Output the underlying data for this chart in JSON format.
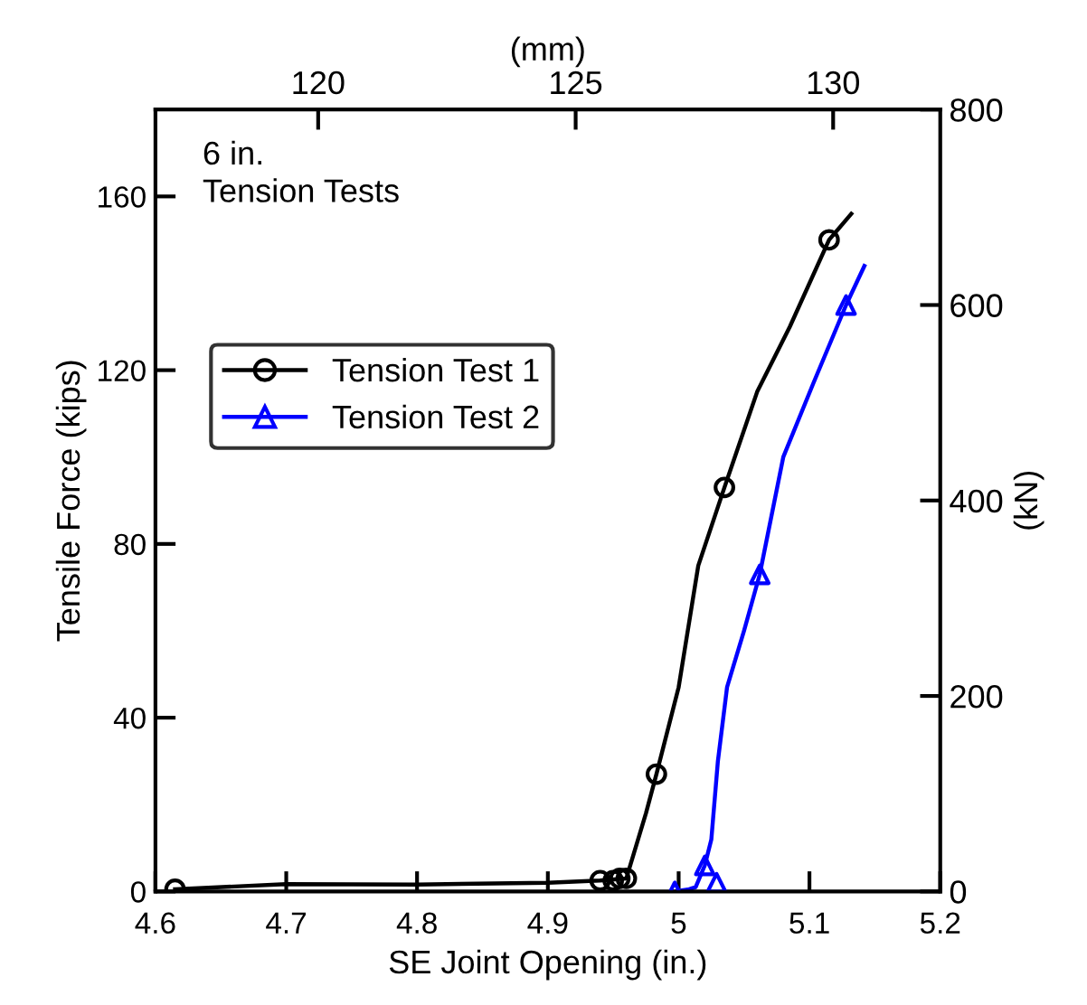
{
  "chart_data": {
    "type": "line",
    "xlabel": "SE Joint Opening (in.)",
    "ylabel": "Tensile Force (kips)",
    "y2label": "(kN)",
    "x2label": "(mm)",
    "annotations": [
      "6 in.\nTension Tests"
    ],
    "xlim": [
      4.6,
      5.2
    ],
    "xticks": [
      4.6,
      4.7,
      4.8,
      4.9,
      5,
      5.1,
      5.2
    ],
    "ylim": [
      0,
      180
    ],
    "yticks": [
      0,
      40,
      80,
      120,
      160
    ],
    "y2lim": [
      0,
      800
    ],
    "y2ticks": [
      0,
      200,
      400,
      600,
      800
    ],
    "x2lim": [
      116.84,
      132.08
    ],
    "x2ticks": [
      120,
      125,
      130
    ],
    "grid": false,
    "legend": "top left",
    "line_style": "solid",
    "series": [
      {
        "name": "Tension Test 1",
        "marker": "none",
        "color": "#000000",
        "x": [
          4.615,
          4.7,
          4.8,
          4.9,
          4.94,
          4.96,
          4.965,
          4.975,
          4.983,
          5.0,
          5.015,
          5.035,
          5.06,
          5.085,
          5.115,
          5.132
        ],
        "values": [
          0.5,
          1.7,
          1.6,
          2.0,
          2.5,
          3,
          8,
          18,
          27,
          47,
          75,
          93,
          115,
          130,
          150,
          156
        ]
      },
      {
        "type": "scatter",
        "marker": "circle",
        "color": "#000000",
        "x": [
          4.615,
          4.94,
          4.95,
          4.955,
          4.96,
          4.983,
          5.035,
          5.115
        ],
        "values": [
          0.5,
          2.5,
          2.5,
          3,
          3,
          27,
          93,
          150
        ]
      },
      {
        "name": "Tension Test 2",
        "marker": "none",
        "color": "#0000ff",
        "x": [
          4.997,
          5.008,
          5.013,
          5.02,
          5.025,
          5.03,
          5.037,
          5.05,
          5.062,
          5.08,
          5.103,
          5.128,
          5.142
        ],
        "values": [
          0,
          0.5,
          1,
          6,
          12,
          30,
          47,
          60,
          73,
          100,
          117,
          135,
          144
        ]
      },
      {
        "type": "scatter",
        "marker": "triangle",
        "color": "#0000ff",
        "x": [
          4.997,
          5.008,
          5.013,
          5.02,
          5.029,
          5.062,
          5.128
        ],
        "values": [
          0,
          null,
          null,
          6,
          2,
          73,
          135
        ]
      }
    ]
  }
}
